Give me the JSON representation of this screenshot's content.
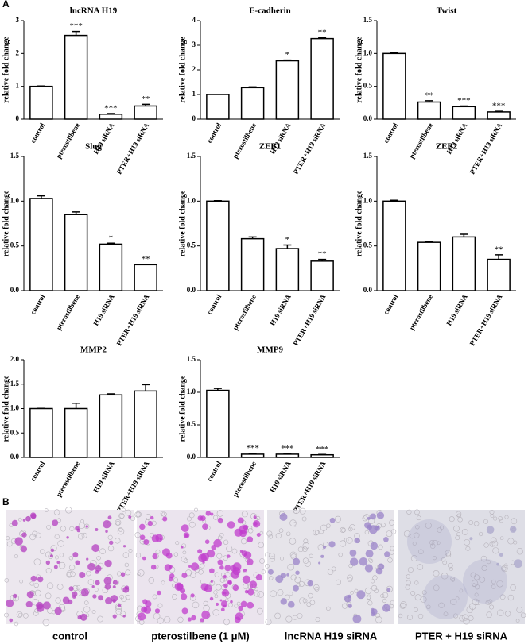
{
  "panel_labels": [
    "A",
    "B"
  ],
  "chart_data": [
    {
      "type": "bar",
      "title": "lncRNA H19",
      "y_label": "relative fold change",
      "categories": [
        "control",
        "pterostilbene",
        "H19 siRNA",
        "PTER+H19 siRNA"
      ],
      "values": [
        1.0,
        2.55,
        0.15,
        0.4
      ],
      "errors": [
        0.01,
        0.12,
        0.02,
        0.05
      ],
      "annotations": [
        null,
        "***",
        "***",
        "**"
      ],
      "ylim": [
        0,
        3
      ],
      "yticks": [
        0,
        1,
        2,
        3
      ],
      "color": "#ffffff"
    },
    {
      "type": "bar",
      "title": "E-cadherin",
      "y_label": "relative fold change",
      "categories": [
        "control",
        "pterostilbene",
        "H19 siRNA",
        "PTER+H19 siRNA"
      ],
      "values": [
        1.0,
        1.28,
        2.37,
        3.27
      ],
      "errors": [
        0.01,
        0.03,
        0.03,
        0.03
      ],
      "annotations": [
        null,
        null,
        "*",
        "**"
      ],
      "ylim": [
        0,
        4
      ],
      "yticks": [
        0,
        1,
        2,
        3,
        4
      ],
      "color": "#ffffff"
    },
    {
      "type": "bar",
      "title": "Twist",
      "y_label": "relative fold change",
      "categories": [
        "control",
        "pterostilbene",
        "H19 siRNA",
        "PTER+H19 siRNA"
      ],
      "values": [
        1.0,
        0.26,
        0.19,
        0.11
      ],
      "errors": [
        0.01,
        0.02,
        0.01,
        0.01
      ],
      "annotations": [
        null,
        "**",
        "***",
        "***"
      ],
      "ylim": [
        0,
        1.5
      ],
      "yticks": [
        {
          "value": 0,
          "label": "0.0"
        },
        0.5,
        {
          "value": 1,
          "label": "1.0"
        },
        1.5
      ],
      "color": "#ffffff"
    },
    {
      "type": "bar",
      "title": "Slug",
      "y_label": "relative fold change",
      "categories": [
        "control",
        "pterostilbene",
        "H19 siRNA",
        "PTER+H19 siRNA"
      ],
      "values": [
        1.03,
        0.85,
        0.52,
        0.29
      ],
      "errors": [
        0.03,
        0.03,
        0.01,
        0.005
      ],
      "annotations": [
        null,
        null,
        "*",
        "**"
      ],
      "ylim": [
        0,
        1.5
      ],
      "yticks": [
        {
          "value": 0,
          "label": "0.0"
        },
        0.5,
        {
          "value": 1,
          "label": "1.0"
        },
        1.5
      ],
      "color": "#ffffff"
    },
    {
      "type": "bar",
      "title": "ZEB1",
      "y_label": "relative fold change",
      "categories": [
        "control",
        "pterostilbene",
        "H19 siRNA",
        "PTER+H19 siRNA"
      ],
      "values": [
        1.0,
        0.58,
        0.47,
        0.33
      ],
      "errors": [
        0.005,
        0.02,
        0.04,
        0.02
      ],
      "annotations": [
        null,
        null,
        "*",
        "**"
      ],
      "ylim": [
        0,
        1.5
      ],
      "yticks": [
        {
          "value": 0,
          "label": "0.0"
        },
        0.5,
        {
          "value": 1,
          "label": "1.0"
        },
        1.5
      ],
      "color": "#ffffff"
    },
    {
      "type": "bar",
      "title": "ZEB2",
      "y_label": "relative fold change",
      "categories": [
        "control",
        "pterostilbene",
        "H19 siRNA",
        "PTER+H19 siRNA"
      ],
      "values": [
        1.0,
        0.54,
        0.6,
        0.35
      ],
      "errors": [
        0.01,
        0.005,
        0.03,
        0.05
      ],
      "annotations": [
        null,
        null,
        null,
        "**"
      ],
      "ylim": [
        0,
        1.5
      ],
      "yticks": [
        {
          "value": 0,
          "label": "0.0"
        },
        0.5,
        {
          "value": 1,
          "label": "1.0"
        },
        1.5
      ],
      "color": "#ffffff"
    },
    {
      "type": "bar",
      "title": "MMP2",
      "y_label": "relative fold change",
      "categories": [
        "control",
        "pterostilbene",
        "H19 siRNA",
        "PTER+H19 siRNA"
      ],
      "values": [
        1.0,
        1.0,
        1.28,
        1.36
      ],
      "errors": [
        0.005,
        0.11,
        0.02,
        0.13
      ],
      "annotations": [
        null,
        null,
        null,
        null
      ],
      "ylim": [
        0,
        2
      ],
      "yticks": [
        {
          "value": 0,
          "label": "0.0"
        },
        0.5,
        {
          "value": 1,
          "label": "1.0"
        },
        1.5,
        {
          "value": 2,
          "label": "2.0"
        }
      ],
      "color": "#ffffff"
    },
    {
      "type": "bar",
      "title": "MMP9",
      "y_label": "relative fold change",
      "categories": [
        "control",
        "pterostilbene",
        "H19 siRNA",
        "PTER+H19 siRNA"
      ],
      "values": [
        1.03,
        0.05,
        0.05,
        0.04
      ],
      "errors": [
        0.03,
        0.01,
        0.005,
        0.005
      ],
      "annotations": [
        null,
        "***",
        "***",
        "***"
      ],
      "ylim": [
        0,
        1.5
      ],
      "yticks": [
        {
          "value": 0,
          "label": "0.0"
        },
        0.5,
        {
          "value": 1,
          "label": "1.0"
        },
        1.5
      ],
      "color": "#ffffff"
    }
  ],
  "images": [
    {
      "caption": "control"
    },
    {
      "caption": "pterostilbene (1 μM)"
    },
    {
      "caption": "lncRNA H19 siRNA"
    },
    {
      "caption": "PTER + H19 siRNA"
    }
  ]
}
